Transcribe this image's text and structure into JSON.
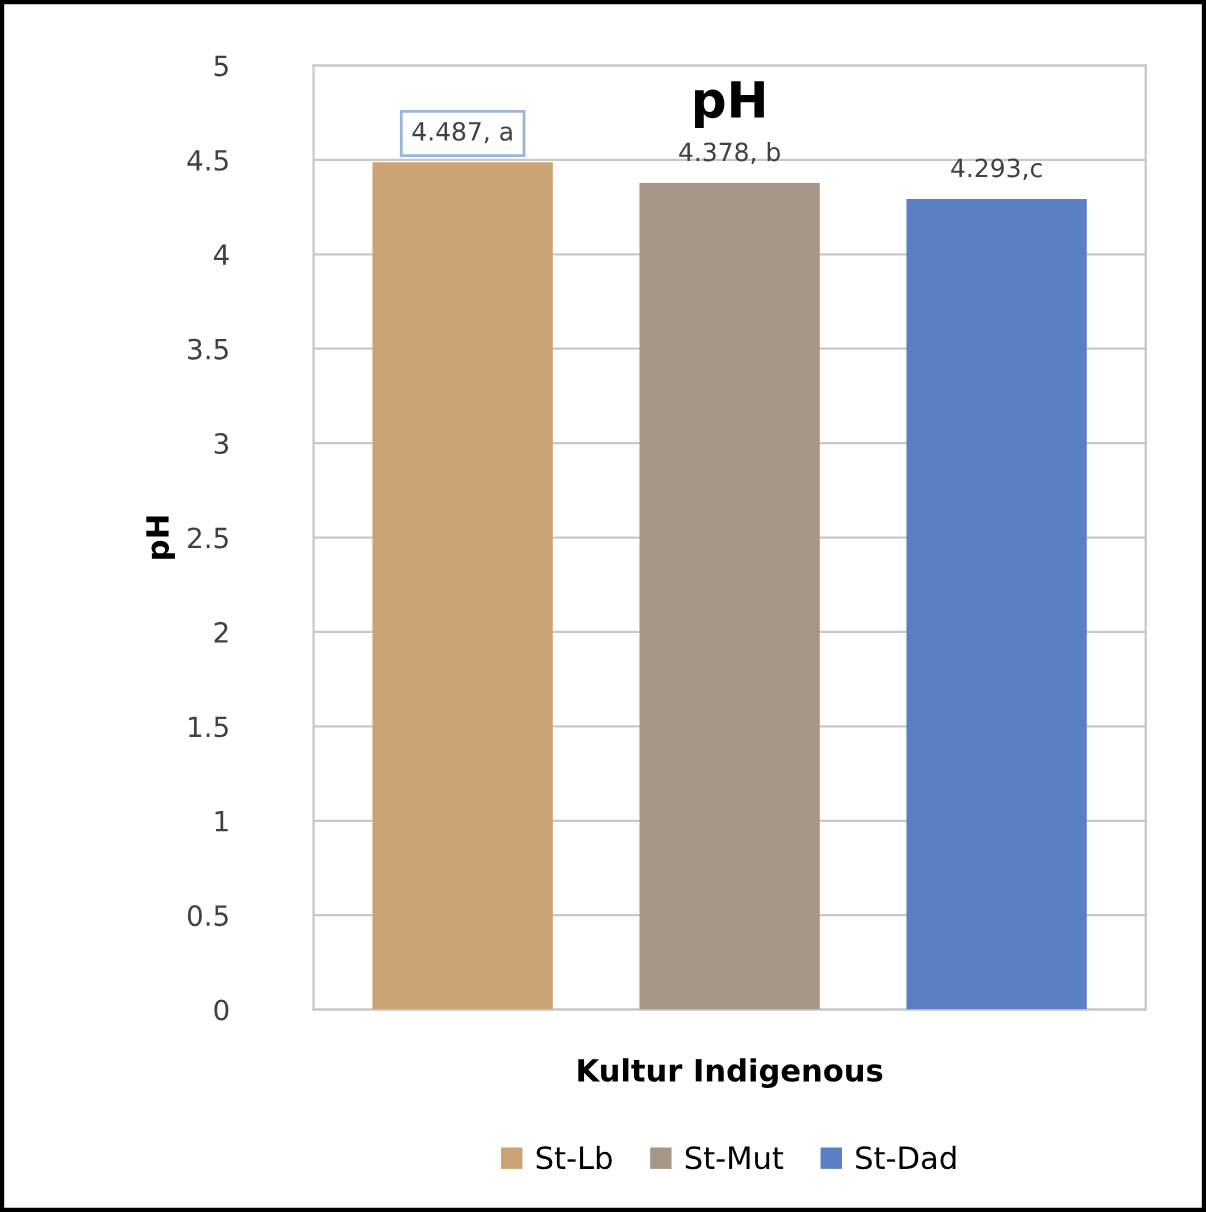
{
  "chart_data": {
    "type": "bar",
    "title": "pH",
    "xlabel": "Kultur Indigenous",
    "ylabel": "pH",
    "categories": [
      null
    ],
    "series": [
      {
        "name": "St-Lb",
        "color": "#c9a373",
        "values": [
          4.487
        ],
        "value_labels": [
          "4.487, a"
        ]
      },
      {
        "name": "St-Mut",
        "color": "#a59688",
        "values": [
          4.378
        ],
        "value_labels": [
          "4.378, b"
        ]
      },
      {
        "name": "St-Dad",
        "color": "#5b7fc4",
        "values": [
          4.293
        ],
        "value_labels": [
          "4.293,c"
        ]
      }
    ],
    "ylim": [
      0,
      5
    ],
    "yticks": [
      0,
      0.5,
      1,
      1.5,
      2,
      2.5,
      3,
      3.5,
      4,
      4.5,
      5
    ],
    "grid": "y",
    "legend": "bottom"
  }
}
